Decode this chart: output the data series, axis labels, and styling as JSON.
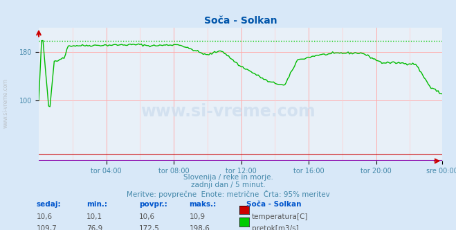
{
  "title": "Soča - Solkan",
  "bg_color": "#d8e8f8",
  "plot_bg_color": "#e8f0f8",
  "grid_color_major": "#ffaaaa",
  "grid_color_minor": "#ffcccc",
  "x_labels": [
    "tor 04:00",
    "tor 08:00",
    "tor 12:00",
    "tor 16:00",
    "tor 20:00",
    "sre 00:00"
  ],
  "y_min": 0,
  "y_max": 220,
  "y_ticks": [
    100,
    180
  ],
  "subtitle1": "Slovenija / reke in morje.",
  "subtitle2": "zadnji dan / 5 minut.",
  "subtitle3": "Meritve: povprečne  Enote: metrične  Črta: 95% meritev",
  "footer_headers": [
    "sedaj:",
    "min.:",
    "povpr.:",
    "maks.:"
  ],
  "footer_col1": [
    "10,6",
    "109,7"
  ],
  "footer_col2": [
    "10,1",
    "76,9"
  ],
  "footer_col3": [
    "10,6",
    "172,5"
  ],
  "footer_col4": [
    "10,9",
    "198,6"
  ],
  "legend_title": "Soča - Solkan",
  "legend_items": [
    "temperatura[C]",
    "pretok[m3/s]"
  ],
  "legend_colors": [
    "#cc0000",
    "#00cc00"
  ],
  "temp_color": "#cc0000",
  "flow_color": "#00bb00",
  "watermark_text": "www.si-vreme.com",
  "sidebar_text": "www.si-vreme.com",
  "n_points": 288,
  "flow_max_line": 198.6
}
